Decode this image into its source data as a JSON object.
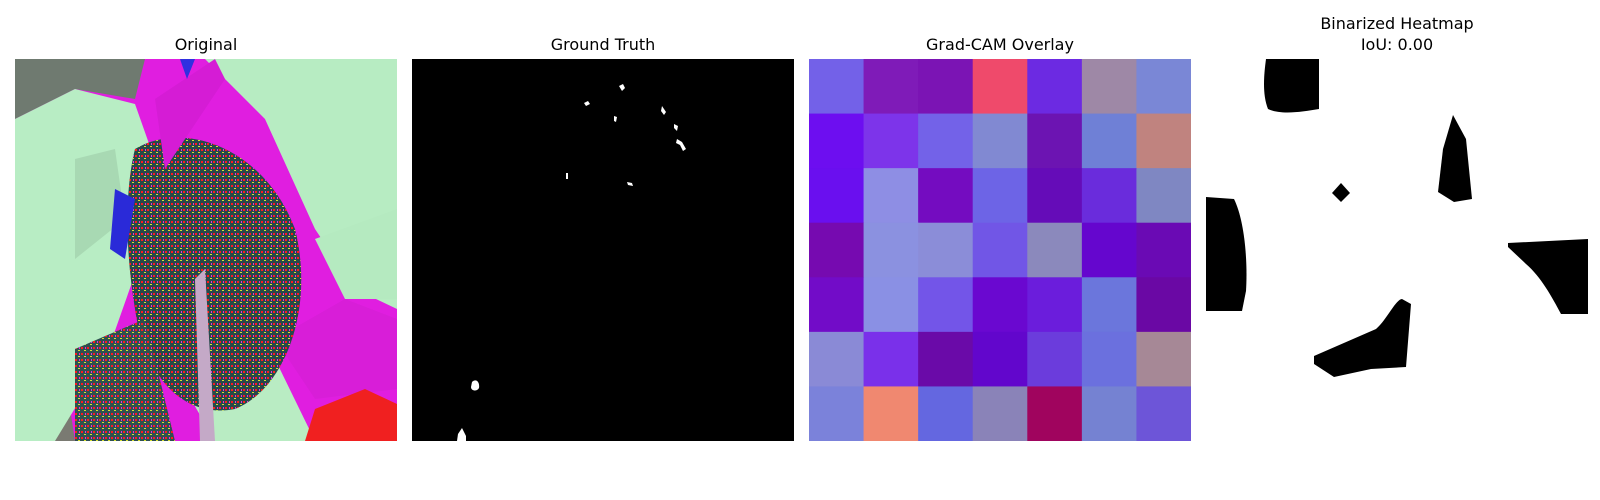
{
  "panels": {
    "original": {
      "title": "Original"
    },
    "ground_truth": {
      "title": "Ground Truth"
    },
    "gradcam": {
      "title": "Grad-CAM Overlay",
      "grid": [
        [
          "#7361e8",
          "#7f1bb8",
          "#7b14b4",
          "#ef4a6b",
          "#6c2ae2",
          "#9e88a6",
          "#7a87d6"
        ],
        [
          "#6d0ef0",
          "#7d34ea",
          "#7362e8",
          "#8189d2",
          "#6c14b2",
          "#6f80d6",
          "#c0837f"
        ],
        [
          "#6a0fef",
          "#8e8ee4",
          "#740cc0",
          "#6d64e6",
          "#650cb8",
          "#6a2cdc",
          "#7f87c2"
        ],
        [
          "#760ab0",
          "#8b91e0",
          "#8b8dd8",
          "#7156e6",
          "#8b89bc",
          "#6506ce",
          "#6a0ab4"
        ],
        [
          "#720cc8",
          "#8a90e4",
          "#7355e8",
          "#6a08d0",
          "#6b1ddc",
          "#6b76dc",
          "#6a08a4"
        ],
        [
          "#8a8ad6",
          "#7a30ea",
          "#6a0aa8",
          "#6206cc",
          "#6b3cdc",
          "#6b70de",
          "#a68896"
        ],
        [
          "#7b82da",
          "#f08870",
          "#6467e0",
          "#8a83b8",
          "#a0045e",
          "#7582d2",
          "#6d55d8"
        ]
      ]
    },
    "binarized": {
      "title": "Binarized Heatmap",
      "subtitle": "IoU: 0.00"
    }
  }
}
